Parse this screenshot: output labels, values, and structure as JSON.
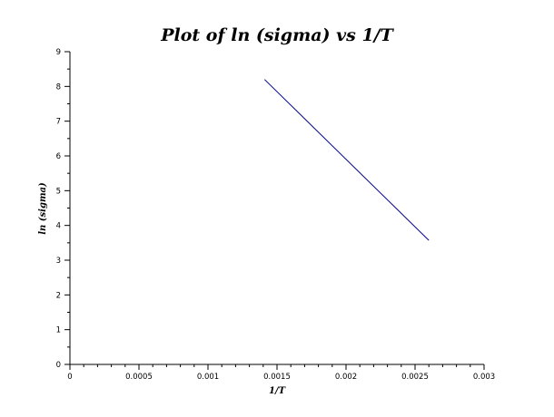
{
  "chart_data": {
    "type": "line",
    "title": "Plot of ln (sigma) vs 1/T",
    "xlabel": "1/T",
    "ylabel": "ln (sigma)",
    "xlim": [
      0,
      0.003
    ],
    "ylim": [
      0,
      9
    ],
    "x_ticks": [
      "0",
      "0.0005",
      "0.001",
      "0.0015",
      "0.002",
      "0.0025",
      "0.003"
    ],
    "y_ticks": [
      "0",
      "1",
      "2",
      "3",
      "4",
      "5",
      "6",
      "7",
      "8",
      "9"
    ],
    "grid": false,
    "series": [
      {
        "color": "#00008b",
        "x": [
          0.00141,
          0.0026
        ],
        "y": [
          8.2,
          3.57
        ]
      }
    ]
  }
}
